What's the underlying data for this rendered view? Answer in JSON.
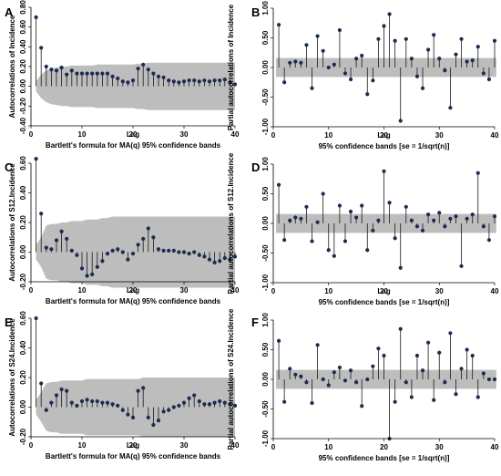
{
  "chart_data": [
    {
      "panel": "A",
      "type": "stem",
      "band": "ma",
      "ylabel": "Autocorrelations of Incidence",
      "xlabel": "Lag",
      "note": "Bartlett's formula for MA(q) 95% confidence bands",
      "xlim": [
        0,
        40
      ],
      "ylim": [
        -0.4,
        0.8
      ],
      "xticks": [
        0,
        10,
        20,
        30,
        40
      ],
      "yticks": [
        -0.4,
        -0.2,
        0.0,
        0.2,
        0.4,
        0.6,
        0.8
      ],
      "ytick_labels": [
        "-0.40",
        "-0.20",
        "0.00",
        "0.20",
        "0.40",
        "0.60",
        "0.80"
      ],
      "x": [
        1,
        2,
        3,
        4,
        5,
        6,
        7,
        8,
        9,
        10,
        11,
        12,
        13,
        14,
        15,
        16,
        17,
        18,
        19,
        20,
        21,
        22,
        23,
        24,
        25,
        26,
        27,
        28,
        29,
        30,
        31,
        32,
        33,
        34,
        35,
        36,
        37,
        38,
        39,
        40
      ],
      "values": [
        0.7,
        0.39,
        0.2,
        0.17,
        0.16,
        0.19,
        0.12,
        0.16,
        0.13,
        0.13,
        0.13,
        0.13,
        0.13,
        0.13,
        0.13,
        0.1,
        0.08,
        0.05,
        0.04,
        0.06,
        0.18,
        0.22,
        0.17,
        0.13,
        0.1,
        0.09,
        0.06,
        0.05,
        0.04,
        0.05,
        0.06,
        0.06,
        0.05,
        0.06,
        0.05,
        0.06,
        0.06,
        0.07,
        0.04,
        0.02
      ],
      "band_width": [
        0.05,
        0.12,
        0.16,
        0.18,
        0.19,
        0.2,
        0.2,
        0.21,
        0.21,
        0.21,
        0.21,
        0.21,
        0.22,
        0.22,
        0.22,
        0.22,
        0.22,
        0.22,
        0.22,
        0.22,
        0.23,
        0.23,
        0.24,
        0.24,
        0.24,
        0.24,
        0.24,
        0.24,
        0.24,
        0.24,
        0.24,
        0.24,
        0.24,
        0.24,
        0.24,
        0.24,
        0.24,
        0.24,
        0.24,
        0.24
      ]
    },
    {
      "panel": "B",
      "type": "stem",
      "band": "flat",
      "ylabel": "Partial autocorrelations of Incidence",
      "xlabel": "Lag",
      "note": "95% confidence bands [se = 1/sqrt(n)]",
      "xlim": [
        0,
        40
      ],
      "ylim": [
        -1.0,
        1.0
      ],
      "xticks": [
        0,
        10,
        20,
        30,
        40
      ],
      "yticks": [
        -1.0,
        -0.5,
        0.0,
        0.5,
        1.0
      ],
      "ytick_labels": [
        "-1.00",
        "-0.50",
        "0.00",
        "0.50",
        "1.00"
      ],
      "x": [
        1,
        2,
        3,
        4,
        5,
        6,
        7,
        8,
        9,
        10,
        11,
        12,
        13,
        14,
        15,
        16,
        17,
        18,
        19,
        20,
        21,
        22,
        23,
        24,
        25,
        26,
        27,
        28,
        29,
        30,
        31,
        32,
        33,
        34,
        35,
        36,
        37,
        38,
        39,
        40
      ],
      "values": [
        0.72,
        -0.25,
        0.08,
        0.1,
        0.08,
        0.38,
        -0.35,
        0.53,
        0.28,
        0.0,
        0.05,
        0.63,
        -0.1,
        -0.2,
        0.15,
        0.2,
        -0.45,
        -0.22,
        0.48,
        0.7,
        0.9,
        0.45,
        -0.9,
        0.48,
        0.15,
        -0.15,
        -0.35,
        0.3,
        0.55,
        0.15,
        -0.05,
        -0.68,
        0.22,
        0.48,
        0.1,
        0.12,
        0.35,
        -0.1,
        -0.2,
        0.45
      ],
      "band_half": 0.16
    },
    {
      "panel": "C",
      "type": "stem",
      "band": "ma",
      "ylabel": "Autocorrelations of S12.Incidence",
      "xlabel": "Lag",
      "note": "Bartlett's formula for MA(q) 95% confidence bands",
      "xlim": [
        0,
        40
      ],
      "ylim": [
        -0.2,
        0.6
      ],
      "xticks": [
        0,
        10,
        20,
        30,
        40
      ],
      "yticks": [
        -0.2,
        0.0,
        0.2,
        0.4,
        0.6
      ],
      "ytick_labels": [
        "-0.20",
        "0.00",
        "0.20",
        "0.40",
        "0.60"
      ],
      "x": [
        1,
        2,
        3,
        4,
        5,
        6,
        7,
        8,
        9,
        10,
        11,
        12,
        13,
        14,
        15,
        16,
        17,
        18,
        19,
        20,
        21,
        22,
        23,
        24,
        25,
        26,
        27,
        28,
        29,
        30,
        31,
        32,
        33,
        34,
        35,
        36,
        37,
        38,
        39,
        40
      ],
      "values": [
        0.63,
        0.26,
        0.03,
        0.02,
        0.08,
        0.14,
        0.09,
        0.01,
        -0.02,
        -0.11,
        -0.16,
        -0.15,
        -0.1,
        -0.06,
        -0.01,
        0.01,
        0.02,
        0.0,
        -0.05,
        -0.01,
        0.05,
        0.09,
        0.16,
        0.1,
        0.02,
        0.01,
        0.01,
        0.01,
        0.0,
        0.0,
        -0.01,
        0.0,
        -0.02,
        -0.03,
        -0.05,
        -0.07,
        -0.06,
        -0.04,
        -0.05,
        -0.03
      ],
      "band_width": [
        0.05,
        0.1,
        0.18,
        0.19,
        0.19,
        0.2,
        0.2,
        0.21,
        0.21,
        0.21,
        0.22,
        0.22,
        0.22,
        0.23,
        0.23,
        0.24,
        0.24,
        0.24,
        0.24,
        0.24,
        0.24,
        0.24,
        0.24,
        0.24,
        0.24,
        0.24,
        0.24,
        0.24,
        0.24,
        0.24,
        0.24,
        0.24,
        0.24,
        0.24,
        0.24,
        0.24,
        0.24,
        0.24,
        0.24,
        0.24
      ]
    },
    {
      "panel": "D",
      "type": "stem",
      "band": "flat",
      "ylabel": "Partial autocorrelations of S12.Incidence",
      "xlabel": "Lag",
      "note": "95% confidence bands [se = 1/sqrt(n)]",
      "xlim": [
        0,
        40
      ],
      "ylim": [
        -1.0,
        1.0
      ],
      "xticks": [
        0,
        10,
        20,
        30,
        40
      ],
      "yticks": [
        -1.0,
        -0.5,
        0.0,
        0.5,
        1.0
      ],
      "ytick_labels": [
        "-1.00",
        "-0.50",
        "0.00",
        "0.50",
        "1.00"
      ],
      "x": [
        1,
        2,
        3,
        4,
        5,
        6,
        7,
        8,
        9,
        10,
        11,
        12,
        13,
        14,
        15,
        16,
        17,
        18,
        19,
        20,
        21,
        22,
        23,
        24,
        25,
        26,
        27,
        28,
        29,
        30,
        31,
        32,
        33,
        34,
        35,
        36,
        37,
        38,
        39,
        40
      ],
      "values": [
        0.65,
        -0.28,
        0.05,
        0.1,
        0.08,
        0.28,
        -0.3,
        0.02,
        0.5,
        -0.45,
        -0.55,
        0.3,
        -0.3,
        0.2,
        0.1,
        0.3,
        -0.45,
        -0.12,
        0.05,
        0.88,
        0.35,
        -0.25,
        -0.75,
        0.28,
        0.05,
        -0.05,
        -0.12,
        0.15,
        0.05,
        0.18,
        -0.05,
        0.08,
        0.12,
        -0.72,
        0.08,
        0.15,
        0.85,
        -0.05,
        -0.28,
        0.12
      ],
      "band_half": 0.16
    },
    {
      "panel": "E",
      "type": "stem",
      "band": "ma",
      "ylabel": "Autocorrelations of S24.Incidence",
      "xlabel": "Lag",
      "note": "Bartlett's formula for MA(q) 95% confidence bands",
      "xlim": [
        0,
        40
      ],
      "ylim": [
        -0.2,
        0.6
      ],
      "xticks": [
        0,
        10,
        20,
        30,
        40
      ],
      "yticks": [
        -0.2,
        0.0,
        0.2,
        0.4,
        0.6
      ],
      "ytick_labels": [
        "-0.20",
        "0.00",
        "0.20",
        "0.40",
        "0.60"
      ],
      "x": [
        1,
        2,
        3,
        4,
        5,
        6,
        7,
        8,
        9,
        10,
        11,
        12,
        13,
        14,
        15,
        16,
        17,
        18,
        19,
        20,
        21,
        22,
        23,
        24,
        25,
        26,
        27,
        28,
        29,
        30,
        31,
        32,
        33,
        34,
        35,
        36,
        37,
        38,
        39,
        40
      ],
      "values": [
        0.6,
        0.16,
        -0.02,
        0.03,
        0.08,
        0.12,
        0.11,
        0.03,
        0.01,
        0.04,
        0.05,
        0.04,
        0.04,
        0.03,
        0.03,
        0.02,
        0.01,
        -0.02,
        -0.05,
        -0.07,
        0.11,
        0.13,
        -0.07,
        -0.12,
        -0.09,
        -0.03,
        -0.02,
        0.0,
        0.01,
        0.03,
        0.06,
        0.08,
        0.04,
        0.02,
        0.02,
        0.03,
        0.04,
        0.03,
        0.02,
        0.01
      ],
      "band_width": [
        0.05,
        0.1,
        0.16,
        0.17,
        0.17,
        0.18,
        0.18,
        0.18,
        0.18,
        0.18,
        0.19,
        0.19,
        0.19,
        0.19,
        0.19,
        0.19,
        0.19,
        0.19,
        0.19,
        0.19,
        0.19,
        0.2,
        0.2,
        0.2,
        0.2,
        0.2,
        0.2,
        0.2,
        0.2,
        0.2,
        0.2,
        0.2,
        0.2,
        0.2,
        0.2,
        0.2,
        0.2,
        0.2,
        0.2,
        0.2
      ]
    },
    {
      "panel": "F",
      "type": "stem",
      "band": "flat",
      "ylabel": "Partial autocorrelations of S24.Incidence",
      "xlabel": "",
      "note": "95% confidence bands [se = 1/sqrt(n)]",
      "xlim": [
        0,
        40
      ],
      "ylim": [
        -1.0,
        1.0
      ],
      "xticks": [
        0,
        10,
        20,
        30,
        40
      ],
      "yticks": [
        -1.0,
        -0.5,
        0.0,
        0.5,
        1.0
      ],
      "ytick_labels": [
        "-1.00",
        "-0.50",
        "0.00",
        "0.50",
        "1.00"
      ],
      "x": [
        1,
        2,
        3,
        4,
        5,
        6,
        7,
        8,
        9,
        10,
        11,
        12,
        13,
        14,
        15,
        16,
        17,
        18,
        19,
        20,
        21,
        22,
        23,
        24,
        25,
        26,
        27,
        28,
        29,
        30,
        31,
        32,
        33,
        34,
        35,
        36,
        37,
        38,
        39,
        40
      ],
      "values": [
        0.65,
        -0.38,
        0.18,
        0.08,
        0.05,
        -0.05,
        -0.4,
        0.58,
        0.0,
        -0.1,
        0.12,
        0.2,
        -0.02,
        0.15,
        -0.05,
        -0.45,
        0.0,
        0.22,
        0.52,
        0.4,
        -1.0,
        -0.38,
        0.85,
        -0.05,
        -0.3,
        0.4,
        0.15,
        0.62,
        -0.35,
        0.45,
        -0.05,
        0.78,
        -0.25,
        0.18,
        0.5,
        0.4,
        -0.3,
        0.1,
        0.0,
        0.0
      ],
      "band_half": 0.16
    }
  ]
}
